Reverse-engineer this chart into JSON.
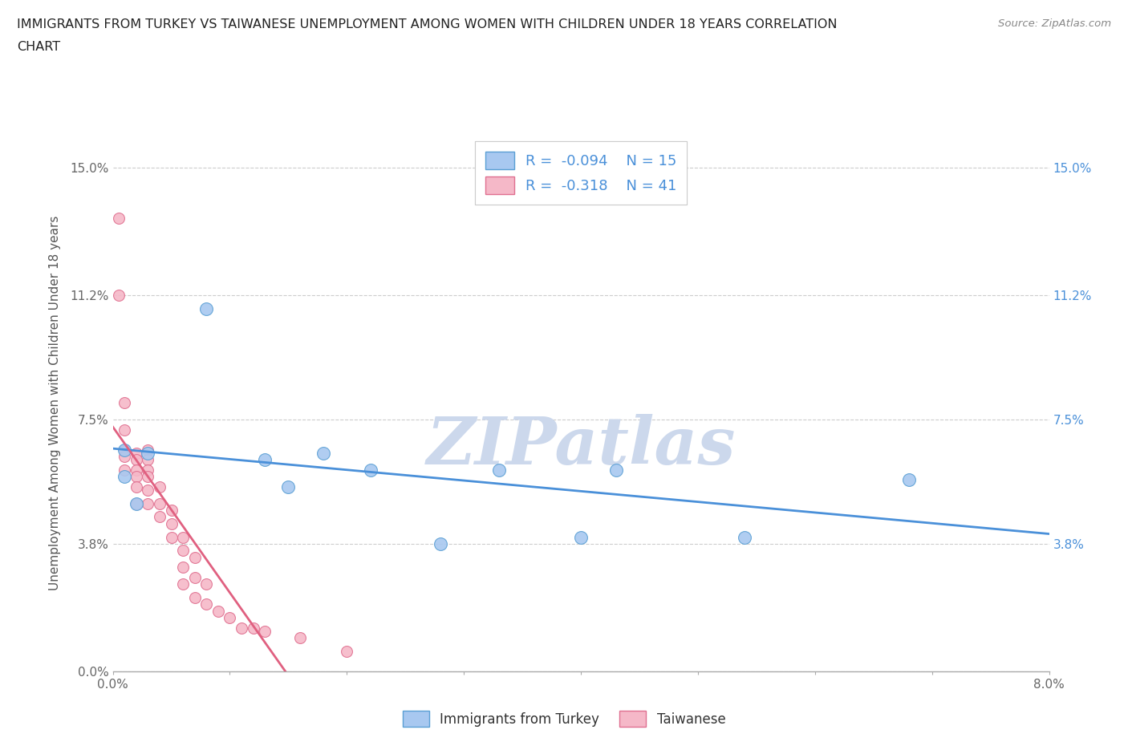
{
  "title_line1": "IMMIGRANTS FROM TURKEY VS TAIWANESE UNEMPLOYMENT AMONG WOMEN WITH CHILDREN UNDER 18 YEARS CORRELATION",
  "title_line2": "CHART",
  "source_text": "Source: ZipAtlas.com",
  "ylabel": "Unemployment Among Women with Children Under 18 years",
  "legend_bottom": [
    "Immigrants from Turkey",
    "Taiwanese"
  ],
  "turkey_color": "#a8c8f0",
  "taiwan_color": "#f5b8c8",
  "turkey_edge_color": "#5a9fd4",
  "taiwan_edge_color": "#e07090",
  "turkey_line_color": "#4a90d9",
  "taiwan_line_color": "#e06080",
  "background_color": "#ffffff",
  "grid_color": "#cccccc",
  "xlim": [
    0.0,
    0.08
  ],
  "ylim": [
    0.0,
    0.16
  ],
  "ytick_values": [
    0.0,
    0.038,
    0.075,
    0.112,
    0.15
  ],
  "ytick_labels_left": [
    "0.0%",
    "3.8%",
    "7.5%",
    "11.2%",
    "15.0%"
  ],
  "ytick_labels_right": [
    "",
    "3.8%",
    "7.5%",
    "11.2%",
    "15.0%"
  ],
  "r_turkey": -0.094,
  "n_turkey": 15,
  "r_taiwan": -0.318,
  "n_taiwan": 41,
  "turkey_scatter_x": [
    0.001,
    0.001,
    0.002,
    0.003,
    0.008,
    0.013,
    0.015,
    0.018,
    0.022,
    0.028,
    0.033,
    0.04,
    0.043,
    0.054,
    0.068
  ],
  "turkey_scatter_y": [
    0.066,
    0.058,
    0.05,
    0.065,
    0.108,
    0.063,
    0.055,
    0.065,
    0.06,
    0.038,
    0.06,
    0.04,
    0.06,
    0.04,
    0.057
  ],
  "taiwan_scatter_x": [
    0.0005,
    0.0005,
    0.001,
    0.001,
    0.001,
    0.001,
    0.001,
    0.002,
    0.002,
    0.002,
    0.002,
    0.002,
    0.002,
    0.003,
    0.003,
    0.003,
    0.003,
    0.003,
    0.003,
    0.004,
    0.004,
    0.004,
    0.005,
    0.005,
    0.005,
    0.006,
    0.006,
    0.006,
    0.006,
    0.007,
    0.007,
    0.007,
    0.008,
    0.008,
    0.009,
    0.01,
    0.011,
    0.012,
    0.013,
    0.016,
    0.02
  ],
  "taiwan_scatter_y": [
    0.135,
    0.112,
    0.08,
    0.072,
    0.066,
    0.064,
    0.06,
    0.065,
    0.063,
    0.06,
    0.058,
    0.055,
    0.05,
    0.066,
    0.063,
    0.06,
    0.058,
    0.054,
    0.05,
    0.055,
    0.05,
    0.046,
    0.048,
    0.044,
    0.04,
    0.04,
    0.036,
    0.031,
    0.026,
    0.034,
    0.028,
    0.022,
    0.026,
    0.02,
    0.018,
    0.016,
    0.013,
    0.013,
    0.012,
    0.01,
    0.006
  ],
  "watermark_text": "ZIPatlas",
  "watermark_color": "#ccd8ec",
  "watermark_fontsize": 60
}
